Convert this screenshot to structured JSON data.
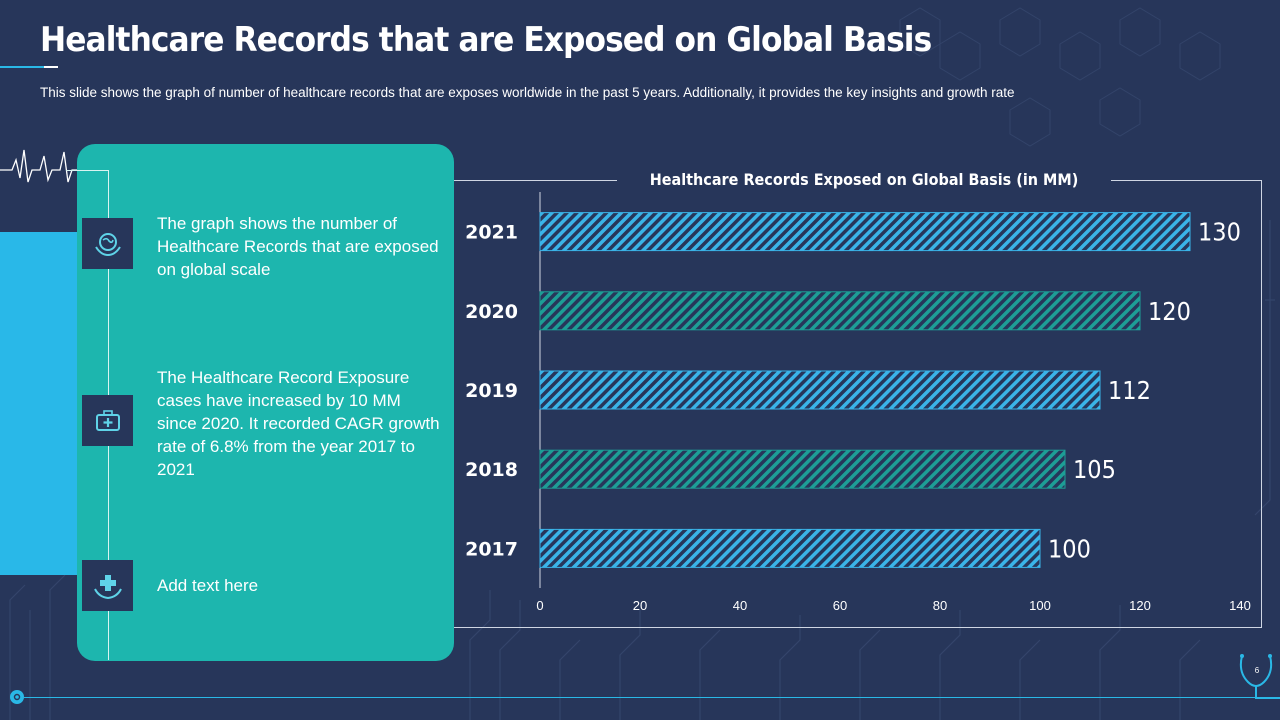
{
  "header": {
    "title": "Healthcare Records that are Exposed on Global Basis",
    "subtitle": "This slide shows the graph of number of healthcare records that are exposes worldwide in the past 5 years. Additionally,  it provides the key insights and growth rate"
  },
  "panel": {
    "items": [
      {
        "icon": "globe-hands-icon",
        "text": "The graph shows the number of Healthcare Records that are exposed on global scale"
      },
      {
        "icon": "medical-kit-icon",
        "text": "The Healthcare Record Exposure cases have increased by 10 MM since 2020. It recorded CAGR growth rate of 6.8% from the year 2017 to 2021"
      },
      {
        "icon": "hands-cross-icon",
        "text": "Add text here"
      }
    ]
  },
  "footer": {
    "page_number": "6"
  },
  "colors": {
    "background": "#27365a",
    "teal": "#1db6ae",
    "cyan": "#29b8e8",
    "bar_blue": "#3ab4e8",
    "bar_teal": "#1d9e96"
  },
  "chart_data": {
    "type": "bar",
    "orientation": "horizontal",
    "title": "Healthcare Records Exposed on Global Basis (in MM)",
    "categories": [
      "2021",
      "2020",
      "2019",
      "2018",
      "2017"
    ],
    "values": [
      130,
      120,
      112,
      105,
      100
    ],
    "xlim": [
      0,
      140
    ],
    "xticks": [
      0,
      20,
      40,
      60,
      80,
      100,
      120,
      140
    ],
    "xlabel": "",
    "ylabel": "",
    "grid": false,
    "legend": "none"
  }
}
